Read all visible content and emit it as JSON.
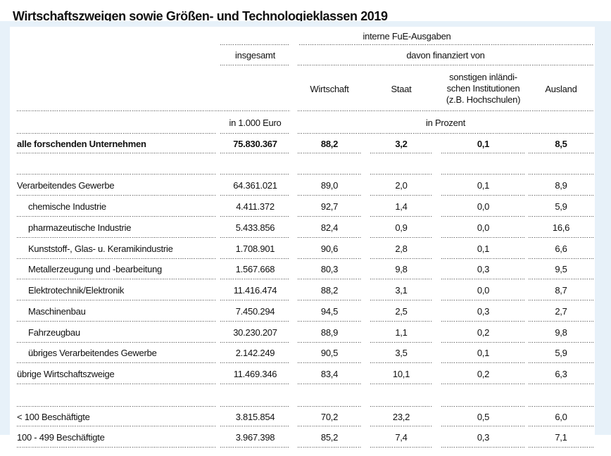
{
  "title": "Wirtschaftszweigen sowie Größen- und Technologieklassen 2019",
  "colors": {
    "panel_bg": "#e7f1f9",
    "sheet_bg": "#ffffff",
    "text": "#111111",
    "dotted_rule": "#4a4a4a"
  },
  "table": {
    "header": {
      "group_top": "interne FuE-Ausgaben",
      "col_total": "insgesamt",
      "group_financed": "davon finanziert von",
      "col_wirtschaft": "Wirtschaft",
      "col_staat": "Staat",
      "col_sonstige": "sonstigen inländi-\nschen Institutionen\n(z.B. Hochschulen)",
      "col_ausland": "Ausland",
      "unit_total": "in 1.000 Euro",
      "unit_percent": "in Prozent"
    },
    "rows": [
      {
        "label": "alle forschenden Unternehmen",
        "total": "75.830.367",
        "wirtschaft": "88,2",
        "staat": "3,2",
        "sonstige": "0,1",
        "ausland": "8,5"
      },
      {
        "label": "Verarbeitendes Gewerbe",
        "total": "64.361.021",
        "wirtschaft": "89,0",
        "staat": "2,0",
        "sonstige": "0,1",
        "ausland": "8,9"
      },
      {
        "label": "chemische Industrie",
        "total": "4.411.372",
        "wirtschaft": "92,7",
        "staat": "1,4",
        "sonstige": "0,0",
        "ausland": "5,9"
      },
      {
        "label": "pharmazeutische Industrie",
        "total": "5.433.856",
        "wirtschaft": "82,4",
        "staat": "0,9",
        "sonstige": "0,0",
        "ausland": "16,6"
      },
      {
        "label": "Kunststoff-, Glas- u. Keramikindustrie",
        "total": "1.708.901",
        "wirtschaft": "90,6",
        "staat": "2,8",
        "sonstige": "0,1",
        "ausland": "6,6"
      },
      {
        "label": "Metallerzeugung und -bearbeitung",
        "total": "1.567.668",
        "wirtschaft": "80,3",
        "staat": "9,8",
        "sonstige": "0,3",
        "ausland": "9,5"
      },
      {
        "label": "Elektrotechnik/Elektronik",
        "total": "11.416.474",
        "wirtschaft": "88,2",
        "staat": "3,1",
        "sonstige": "0,0",
        "ausland": "8,7"
      },
      {
        "label": "Maschinenbau",
        "total": "7.450.294",
        "wirtschaft": "94,5",
        "staat": "2,5",
        "sonstige": "0,3",
        "ausland": "2,7"
      },
      {
        "label": "Fahrzeugbau",
        "total": "30.230.207",
        "wirtschaft": "88,9",
        "staat": "1,1",
        "sonstige": "0,2",
        "ausland": "9,8"
      },
      {
        "label": "übriges Verarbeitendes Gewerbe",
        "total": "2.142.249",
        "wirtschaft": "90,5",
        "staat": "3,5",
        "sonstige": "0,1",
        "ausland": "5,9"
      },
      {
        "label": "übrige Wirtschaftszweige",
        "total": "11.469.346",
        "wirtschaft": "83,4",
        "staat": "10,1",
        "sonstige": "0,2",
        "ausland": "6,3"
      },
      {
        "label": "< 100 Beschäftigte",
        "total": "3.815.854",
        "wirtschaft": "70,2",
        "staat": "23,2",
        "sonstige": "0,5",
        "ausland": "6,0"
      },
      {
        "label": "100 - 499 Beschäftigte",
        "total": "3.967.398",
        "wirtschaft": "85,2",
        "staat": "7,4",
        "sonstige": "0,3",
        "ausland": "7,1"
      }
    ]
  }
}
